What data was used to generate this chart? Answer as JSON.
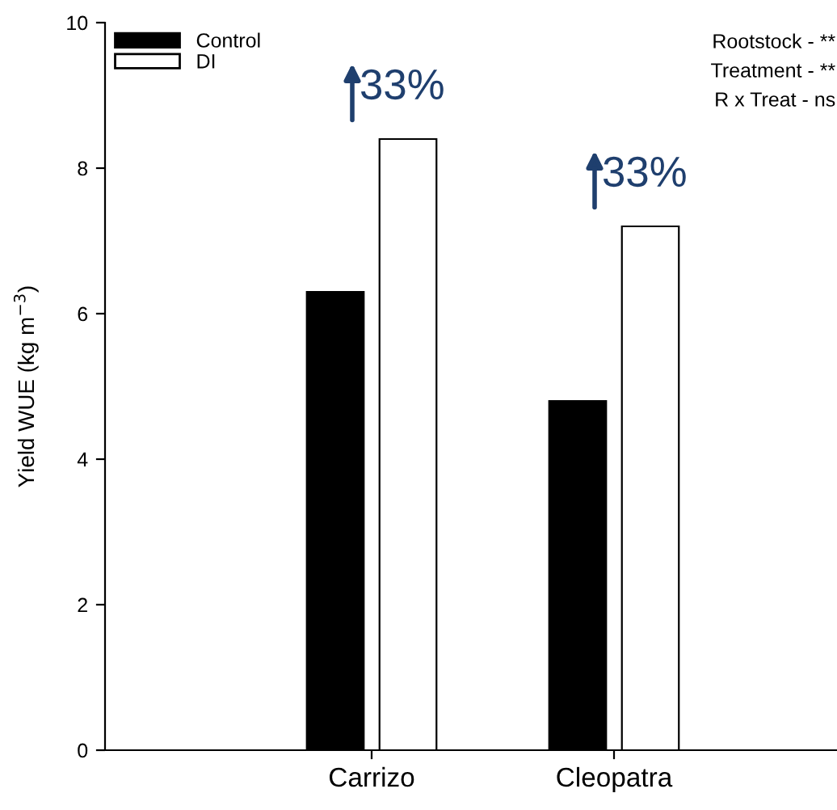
{
  "chart_data": {
    "type": "bar",
    "ylabel": "Yield WUE (kg m$^{−3}$)",
    "categories": [
      "Carrizo",
      "Cleopatra"
    ],
    "series": [
      {
        "name": "Control",
        "color": "#000000",
        "values": [
          6.3,
          4.8
        ]
      },
      {
        "name": "DI",
        "color": "#ffffff",
        "values": [
          8.4,
          7.2
        ]
      }
    ],
    "ylim": [
      0,
      10
    ],
    "yticks": [
      0,
      2,
      4,
      6,
      8,
      10
    ],
    "grid": false,
    "legend": "top left",
    "annotations": [
      {
        "text": "33%",
        "x": "Carrizo",
        "y": 8.4
      },
      {
        "text": "33%",
        "x": "Cleopatra",
        "y": 7.2
      },
      "Rootstock - **",
      "Treatment - **",
      "R x Treat - ns"
    ]
  }
}
